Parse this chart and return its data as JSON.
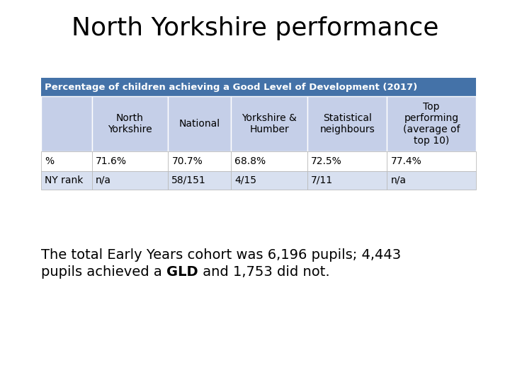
{
  "title": "North Yorkshire performance",
  "title_fontsize": 26,
  "background_color": "#ffffff",
  "table_header_text": "Percentage of children achieving a Good Level of Development (2017)",
  "table_header_bg": "#4472a8",
  "table_header_color": "#ffffff",
  "table_header_fontsize": 9.5,
  "col_headers": [
    "",
    "North\nYorkshire",
    "National",
    "Yorkshire &\nHumber",
    "Statistical\nneighbours",
    "Top\nperforming\n(average of\ntop 10)"
  ],
  "row1_label": "%",
  "row1_values": [
    "71.6%",
    "70.7%",
    "68.8%",
    "72.5%",
    "77.4%"
  ],
  "row2_label": "NY rank",
  "row2_values": [
    "n/a",
    "58/151",
    "4/15",
    "7/11",
    "n/a"
  ],
  "col_header_bg": "#c5cfe8",
  "row1_bg": "#ffffff",
  "row2_bg": "#d8e0f0",
  "cell_text_color": "#000000",
  "cell_fontsize": 10,
  "footer_line1": "The total Early Years cohort was 6,196 pupils; 4,443",
  "footer_line2_pre": "pupils achieved a ",
  "footer_line2_bold": "GLD",
  "footer_line2_post": " and 1,753 did not.",
  "footer_fontsize": 14
}
